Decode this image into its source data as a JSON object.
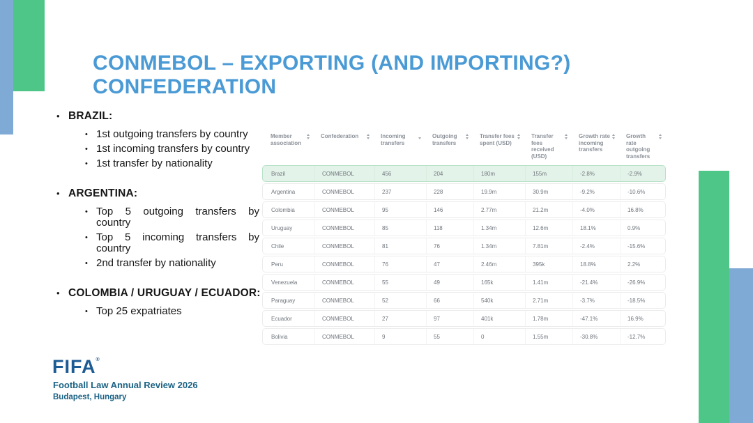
{
  "slide": {
    "title_line1": "CONMEBOL – EXPORTING (AND IMPORTING?)",
    "title_line2": "CONFEDERATION",
    "bullet_char": "•"
  },
  "bullets": [
    {
      "label": "BRAZIL:",
      "items": [
        "1st outgoing transfers by country",
        "1st incoming transfers by country",
        "1st transfer by nationality"
      ]
    },
    {
      "label": "ARGENTINA:",
      "items": [
        "Top 5 outgoing transfers by country",
        "Top 5 incoming transfers by country",
        "2nd transfer by nationality"
      ]
    },
    {
      "label": "COLOMBIA / URUGUAY / ECUADOR:",
      "items": [
        "Top 25 expatriates"
      ]
    }
  ],
  "table": {
    "columns": [
      "Member association",
      "Confederation",
      "Incoming transfers",
      "Outgoing transfers",
      "Transfer fees spent (USD)",
      "Transfer fees received (USD)",
      "Growth rate incoming transfers",
      "Growth rate outgoing transfers"
    ],
    "sort": {
      "column": "Incoming transfers",
      "column_index": 2,
      "direction": "desc"
    },
    "rows": [
      {
        "highlight": true,
        "cells": [
          "Brazil",
          "CONMEBOL",
          "456",
          "204",
          "180m",
          "155m",
          "-2.8%",
          "-2.9%"
        ]
      },
      {
        "highlight": false,
        "cells": [
          "Argentina",
          "CONMEBOL",
          "237",
          "228",
          "19.9m",
          "30.9m",
          "-9.2%",
          "-10.6%"
        ]
      },
      {
        "highlight": false,
        "cells": [
          "Colombia",
          "CONMEBOL",
          "95",
          "146",
          "2.77m",
          "21.2m",
          "-4.0%",
          "16.8%"
        ]
      },
      {
        "highlight": false,
        "cells": [
          "Uruguay",
          "CONMEBOL",
          "85",
          "118",
          "1.34m",
          "12.6m",
          "18.1%",
          "0.9%"
        ]
      },
      {
        "highlight": false,
        "cells": [
          "Chile",
          "CONMEBOL",
          "81",
          "76",
          "1.34m",
          "7.81m",
          "-2.4%",
          "-15.6%"
        ]
      },
      {
        "highlight": false,
        "cells": [
          "Peru",
          "CONMEBOL",
          "76",
          "47",
          "2.46m",
          "395k",
          "18.8%",
          "2.2%"
        ]
      },
      {
        "highlight": false,
        "cells": [
          "Venezuela",
          "CONMEBOL",
          "55",
          "49",
          "165k",
          "1.41m",
          "-21.4%",
          "-26.9%"
        ]
      },
      {
        "highlight": false,
        "cells": [
          "Paraguay",
          "CONMEBOL",
          "52",
          "66",
          "540k",
          "2.71m",
          "-3.7%",
          "-18.5%"
        ]
      },
      {
        "highlight": false,
        "cells": [
          "Ecuador",
          "CONMEBOL",
          "27",
          "97",
          "401k",
          "1.78m",
          "-47.1%",
          "16.9%"
        ]
      },
      {
        "highlight": false,
        "cells": [
          "Bolivia",
          "CONMEBOL",
          "9",
          "55",
          "0",
          "1.55m",
          "-30.8%",
          "-12.7%"
        ]
      }
    ]
  },
  "footer": {
    "logo_text": "FIFA",
    "trademark": "®",
    "line1": "Football Law Annual Review 2026",
    "line2": "Budapest, Hungary"
  },
  "colors": {
    "title_blue": "#4a9ad5",
    "decor_green": "#4ec687",
    "decor_blue": "#80aad6",
    "fifa_navy": "#1d5b94",
    "footer_teal": "#1b6284",
    "highlight_row_bg": "#e3f3e9",
    "highlight_row_border": "#b9e2c8",
    "table_text_gray": "#70767d"
  }
}
